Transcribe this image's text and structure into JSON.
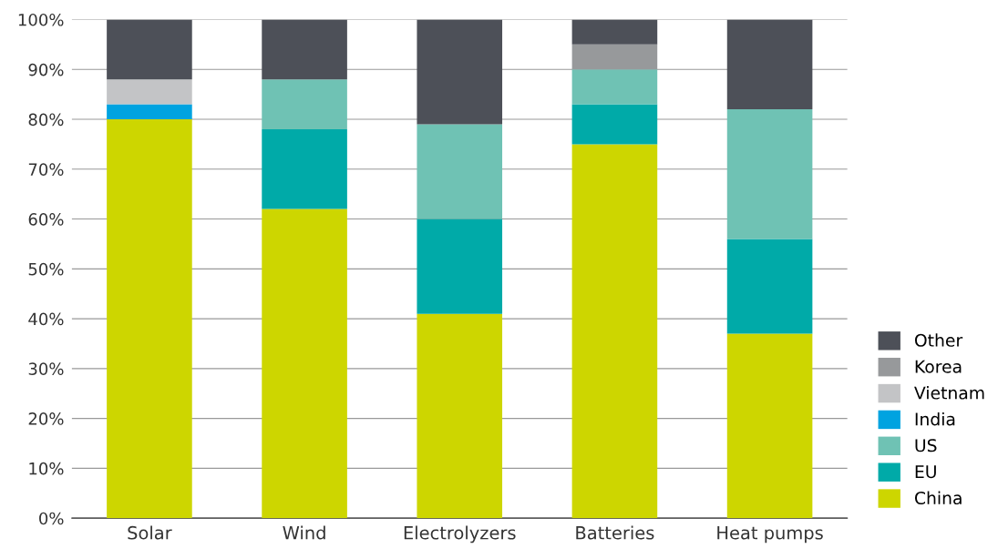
{
  "chart_data": {
    "type": "bar",
    "stacked": true,
    "categories": [
      "Solar",
      "Wind",
      "Electrolyzers",
      "Batteries",
      "Heat pumps"
    ],
    "series": [
      {
        "name": "China",
        "color": "#cdd600",
        "values": [
          80,
          62,
          41,
          75,
          37
        ]
      },
      {
        "name": "EU",
        "color": "#00aaa8",
        "values": [
          0,
          16,
          19,
          8,
          19
        ]
      },
      {
        "name": "US",
        "color": "#6fc2b4",
        "values": [
          0,
          10,
          19,
          7,
          26
        ]
      },
      {
        "name": "India",
        "color": "#00a3e0",
        "values": [
          3,
          0,
          0,
          0,
          0
        ]
      },
      {
        "name": "Vietnam",
        "color": "#c3c4c6",
        "values": [
          5,
          0,
          0,
          0,
          0
        ]
      },
      {
        "name": "Korea",
        "color": "#97999b",
        "values": [
          0,
          0,
          0,
          5,
          0
        ]
      },
      {
        "name": "Other",
        "color": "#4d5058",
        "values": [
          12,
          12,
          21,
          5,
          18
        ]
      }
    ],
    "ylim": [
      0,
      100
    ],
    "yticks": [
      {
        "value": 0,
        "label": "0%"
      },
      {
        "value": 10,
        "label": "10%"
      },
      {
        "value": 20,
        "label": "20%"
      },
      {
        "value": 30,
        "label": "30%"
      },
      {
        "value": 40,
        "label": "40%"
      },
      {
        "value": 50,
        "label": "50%"
      },
      {
        "value": 60,
        "label": "60%"
      },
      {
        "value": 70,
        "label": "70%"
      },
      {
        "value": 80,
        "label": "80%"
      },
      {
        "value": 90,
        "label": "90%"
      },
      {
        "value": 100,
        "label": "100%"
      }
    ],
    "grid": "y",
    "legend": "bottom right"
  }
}
